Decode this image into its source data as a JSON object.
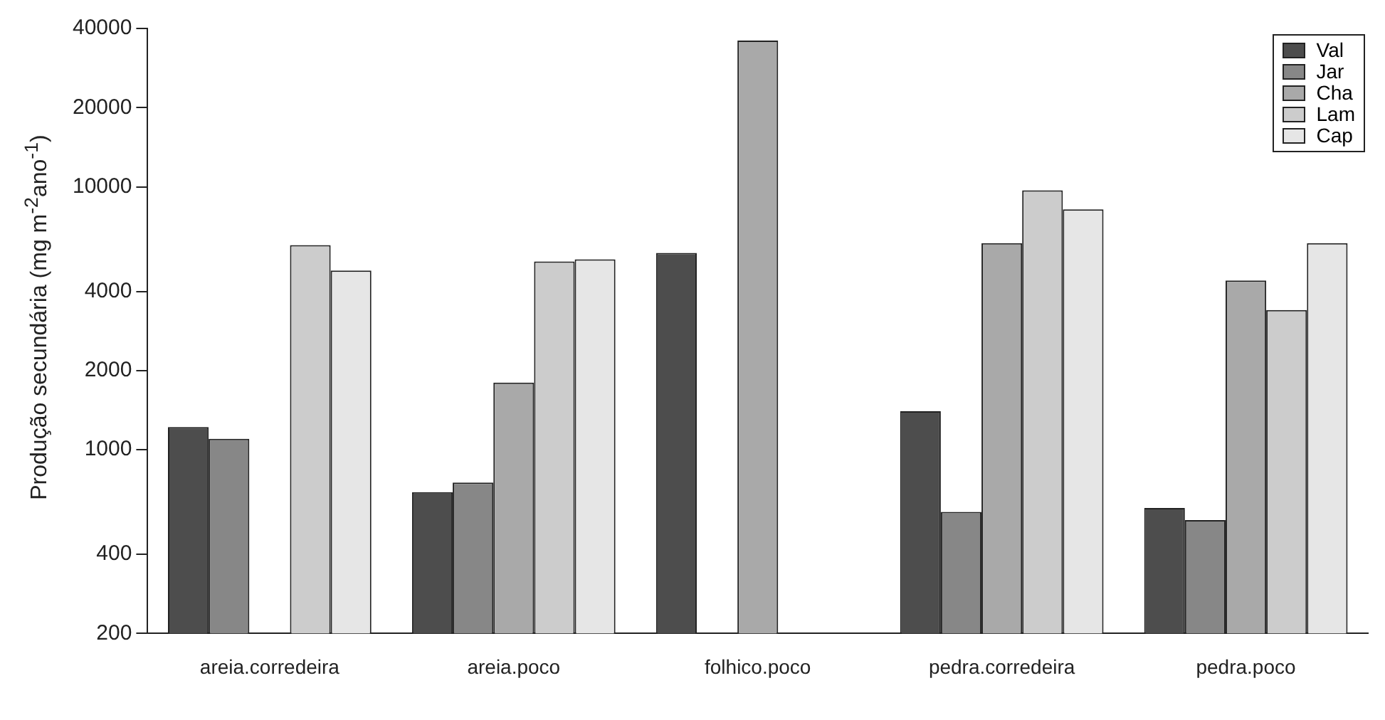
{
  "chart_data": {
    "type": "bar",
    "ylabel": "Produção secundária (mg m$^{-2}$ano$^{-1}$)",
    "categories": [
      "areia.corredeira",
      "areia.poco",
      "folhico.poco",
      "pedra.corredeira",
      "pedra.poco"
    ],
    "series": [
      {
        "name": "Val",
        "color": "#4d4d4d",
        "values": [
          1220,
          690,
          5600,
          1400,
          600
        ]
      },
      {
        "name": "Jar",
        "color": "#878787",
        "values": [
          1100,
          750,
          null,
          580,
          540
        ]
      },
      {
        "name": "Cha",
        "color": "#a9a9a9",
        "values": [
          null,
          1800,
          36000,
          6100,
          4400
        ]
      },
      {
        "name": "Lam",
        "color": "#cccccc",
        "values": [
          6000,
          5200,
          null,
          9700,
          3400
        ]
      },
      {
        "name": "Cap",
        "color": "#e6e6e6",
        "values": [
          4800,
          5300,
          null,
          8200,
          6100
        ]
      }
    ],
    "log": true,
    "ylim": [
      200,
      40000
    ],
    "yticks": [
      200,
      400,
      1000,
      2000,
      4000,
      10000,
      20000,
      40000
    ],
    "grid": false,
    "legend": "top right"
  }
}
